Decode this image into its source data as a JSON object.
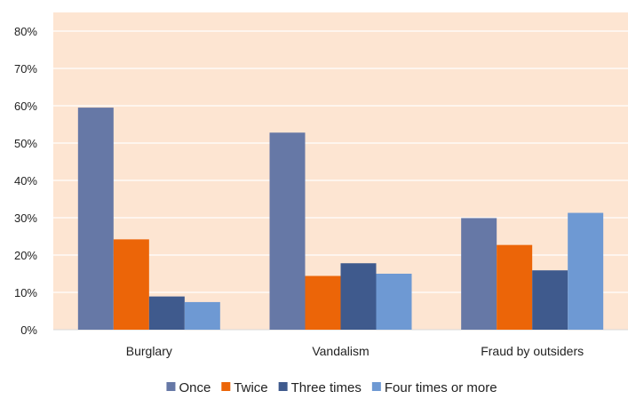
{
  "chart_data": {
    "type": "bar",
    "title": "",
    "xlabel": "",
    "ylabel": "",
    "categories": [
      "Burglary",
      "Vandalism",
      "Fraud by outsiders"
    ],
    "series": [
      {
        "name": "Once",
        "values": [
          59.5,
          52.8,
          29.9
        ],
        "color": "#6678a6"
      },
      {
        "name": "Twice",
        "values": [
          24.2,
          14.4,
          22.7
        ],
        "color": "#ec6508"
      },
      {
        "name": "Three times",
        "values": [
          8.9,
          17.8,
          15.9
        ],
        "color": "#3f5a8d"
      },
      {
        "name": "Four times or more",
        "values": [
          7.4,
          15.0,
          31.3
        ],
        "color": "#6e99d3"
      }
    ],
    "ylim": [
      0,
      80
    ],
    "yticks": [
      0,
      10,
      20,
      30,
      40,
      50,
      60,
      70,
      80
    ],
    "ytick_labels": [
      "0%",
      "10%",
      "20%",
      "30%",
      "40%",
      "50%",
      "60%",
      "70%",
      "80%"
    ],
    "grid": true,
    "legend_position": "bottom",
    "plot_background": "#fde5d2"
  }
}
